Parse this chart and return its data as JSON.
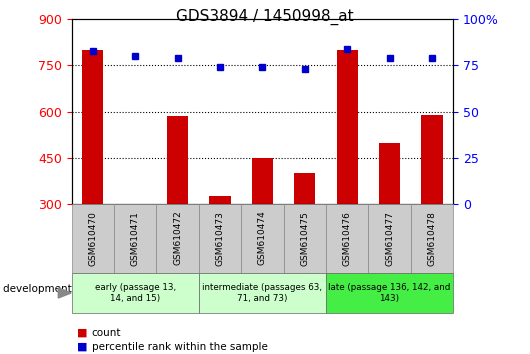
{
  "title": "GDS3894 / 1450998_at",
  "samples": [
    "GSM610470",
    "GSM610471",
    "GSM610472",
    "GSM610473",
    "GSM610474",
    "GSM610475",
    "GSM610476",
    "GSM610477",
    "GSM610478"
  ],
  "counts": [
    800,
    300,
    585,
    325,
    448,
    400,
    800,
    497,
    590
  ],
  "percentiles": [
    83,
    80,
    79,
    74,
    74,
    73,
    84,
    79,
    79
  ],
  "bar_color": "#cc0000",
  "dot_color": "#0000cc",
  "ylim_left": [
    300,
    900
  ],
  "ylim_right": [
    0,
    100
  ],
  "yticks_left": [
    300,
    450,
    600,
    750,
    900
  ],
  "yticks_right": [
    0,
    25,
    50,
    75,
    100
  ],
  "ytick_right_labels": [
    "0",
    "25",
    "50",
    "75",
    "100%"
  ],
  "hgrid_values": [
    450,
    600,
    750
  ],
  "groups": [
    {
      "indices": [
        0,
        1,
        2
      ],
      "label": "early (passage 13,\n14, and 15)",
      "color": "#ccffcc"
    },
    {
      "indices": [
        3,
        4,
        5
      ],
      "label": "intermediate (passages 63,\n71, and 73)",
      "color": "#ccffcc"
    },
    {
      "indices": [
        6,
        7,
        8
      ],
      "label": "late (passage 136, 142, and\n143)",
      "color": "#44ee44"
    }
  ],
  "sample_box_color": "#cccccc",
  "tick_fontsize": 9,
  "title_fontsize": 11,
  "bar_width": 0.5,
  "legend_label_count": "count",
  "legend_label_pct": "percentile rank within the sample"
}
